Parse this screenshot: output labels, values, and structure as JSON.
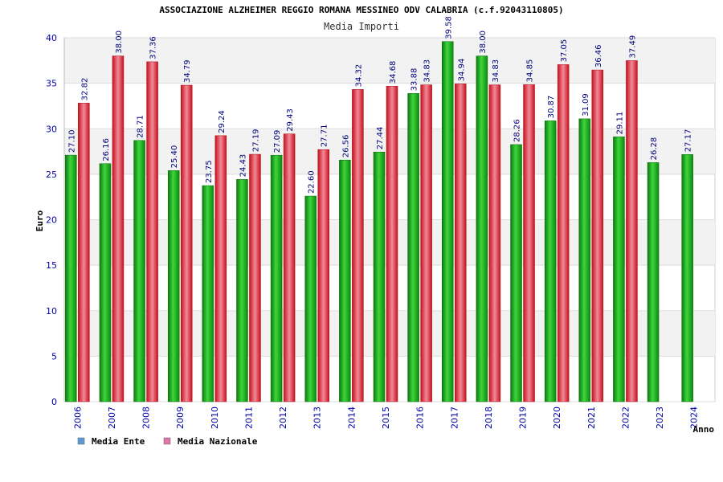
{
  "chart_data": {
    "type": "bar",
    "title": "ASSOCIAZIONE ALZHEIMER REGGIO ROMANA MESSINEO ODV CALABRIA (c.f.92043110805)",
    "subtitle": "Media Importi",
    "xlabel": "Anno",
    "ylabel": "Euro",
    "ylim": [
      0,
      40
    ],
    "yticks": [
      0,
      5,
      10,
      15,
      20,
      25,
      30,
      35,
      40
    ],
    "grid": true,
    "legend_position": "bottom-left",
    "categories": [
      "2006",
      "2007",
      "2008",
      "2009",
      "2010",
      "2011",
      "2012",
      "2013",
      "2014",
      "2015",
      "2016",
      "2017",
      "2018",
      "2019",
      "2020",
      "2021",
      "2022",
      "2023",
      "2024"
    ],
    "series": [
      {
        "name": "Media Ente",
        "legend_color": "#5b9bd5",
        "bar_color": "#22aa22",
        "values": [
          27.1,
          26.16,
          28.71,
          25.4,
          23.75,
          24.43,
          27.09,
          22.6,
          26.56,
          27.44,
          33.88,
          39.58,
          38.0,
          28.26,
          30.87,
          31.09,
          29.11,
          26.28,
          27.17
        ],
        "labels": [
          "27.10",
          "26.16",
          "28.71",
          "25.40",
          "23.75",
          "24.43",
          "27.09",
          "22.60",
          "26.56",
          "27.44",
          "33.88",
          "39.58",
          "38.00",
          "28.26",
          "30.87",
          "31.09",
          "29.11",
          "26.28",
          "27.17"
        ]
      },
      {
        "name": "Media Nazionale",
        "legend_color": "#dd77aa",
        "bar_color": "#e8252f",
        "values": [
          32.82,
          38.0,
          37.36,
          34.79,
          29.24,
          27.19,
          29.43,
          27.71,
          34.32,
          34.68,
          34.83,
          34.94,
          34.83,
          34.85,
          37.05,
          36.46,
          37.49,
          null,
          null
        ],
        "labels": [
          "32.82",
          "38.00",
          "37.36",
          "34.79",
          "29.24",
          "27.19",
          "29.43",
          "27.71",
          "34.32",
          "34.68",
          "34.83",
          "34.94",
          "34.83",
          "34.85",
          "37.05",
          "36.46",
          "37.49",
          "",
          ""
        ]
      }
    ]
  }
}
